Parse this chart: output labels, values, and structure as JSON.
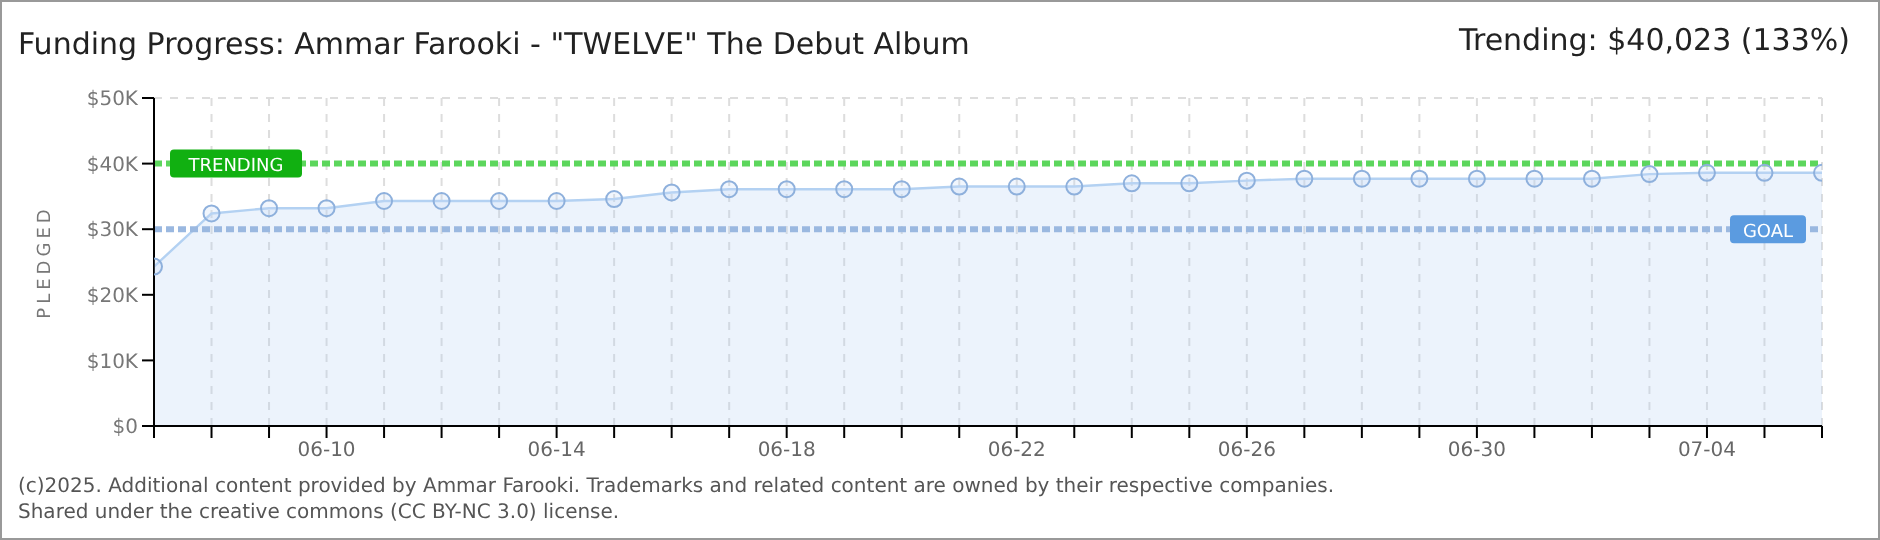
{
  "chart_data": {
    "type": "area",
    "title": "Funding Progress: Ammar Farooki - \"TWELVE\" The Debut Album",
    "subtitle": "Trending: $40,023 (133%)",
    "ylabel": "PLEDGED",
    "x": [
      "--06-07",
      "--06-08",
      "--06-09",
      "--06-10",
      "--06-11",
      "--06-12",
      "--06-13",
      "--06-14",
      "--06-15",
      "--06-16",
      "--06-17",
      "--06-18",
      "--06-19",
      "--06-20",
      "--06-21",
      "--06-22",
      "--06-23",
      "--06-24",
      "--06-25",
      "--06-26",
      "--06-27",
      "--06-28",
      "--06-29",
      "--06-30",
      "--07-01",
      "--07-02",
      "--07-03",
      "--07-04",
      "--07-05",
      "--07-06"
    ],
    "series": [
      {
        "color": "#b3d1f2",
        "values": [
          24300,
          32400,
          33200,
          33200,
          34300,
          34300,
          34300,
          34300,
          34600,
          35600,
          36100,
          36100,
          36100,
          36100,
          36500,
          36500,
          36500,
          37000,
          37000,
          37400,
          37700,
          37700,
          37700,
          37700,
          37700,
          37700,
          38400,
          38600,
          38600,
          38600
        ]
      }
    ],
    "xlim": [
      "--06-07",
      "--07-06"
    ],
    "xticks": [
      {
        "value": "--06-07",
        "label": null
      },
      {
        "value": "--06-08",
        "label": null
      },
      {
        "value": "--06-09",
        "label": null
      },
      {
        "value": "--06-10",
        "label": "06-10"
      },
      {
        "value": "--06-11",
        "label": null
      },
      {
        "value": "--06-12",
        "label": null
      },
      {
        "value": "--06-13",
        "label": null
      },
      {
        "value": "--06-14",
        "label": "06-14"
      },
      {
        "value": "--06-15",
        "label": null
      },
      {
        "value": "--06-16",
        "label": null
      },
      {
        "value": "--06-17",
        "label": null
      },
      {
        "value": "--06-18",
        "label": "06-18"
      },
      {
        "value": "--06-19",
        "label": null
      },
      {
        "value": "--06-20",
        "label": null
      },
      {
        "value": "--06-21",
        "label": null
      },
      {
        "value": "--06-22",
        "label": "06-22"
      },
      {
        "value": "--06-23",
        "label": null
      },
      {
        "value": "--06-24",
        "label": null
      },
      {
        "value": "--06-25",
        "label": null
      },
      {
        "value": "--06-26",
        "label": "06-26"
      },
      {
        "value": "--06-27",
        "label": null
      },
      {
        "value": "--06-28",
        "label": null
      },
      {
        "value": "--06-29",
        "label": null
      },
      {
        "value": "--06-30",
        "label": "06-30"
      },
      {
        "value": "--07-01",
        "label": null
      },
      {
        "value": "--07-02",
        "label": null
      },
      {
        "value": "--07-03",
        "label": null
      },
      {
        "value": "--07-04",
        "label": "07-04"
      },
      {
        "value": "--07-05",
        "label": null
      },
      {
        "value": "--07-06",
        "label": null
      }
    ],
    "ylim": [
      0,
      50000
    ],
    "yticks": [
      {
        "value": 0,
        "label": "$0"
      },
      {
        "value": 10000,
        "label": "$10K"
      },
      {
        "value": 20000,
        "label": "$20K"
      },
      {
        "value": 30000,
        "label": "$30K"
      },
      {
        "value": 40000,
        "label": "$40K"
      },
      {
        "value": 50000,
        "label": "$50K"
      }
    ],
    "ref_lines": [
      {
        "axis": "y",
        "value": 40023,
        "label": "TRENDING",
        "color": "#5cd65c",
        "line_style": "dashed"
      },
      {
        "axis": "y",
        "value": 30000,
        "label": "GOAL",
        "color": "#9ab8e0",
        "line_style": "dashed"
      }
    ],
    "grid": true,
    "legend": false,
    "marker": "circle",
    "annotations": [
      "(c)2025. Additional content provided by Ammar Farooki. Trademarks and related content are owned by their respective companies.",
      "Shared under the creative commons (CC BY-NC 3.0) license."
    ]
  }
}
